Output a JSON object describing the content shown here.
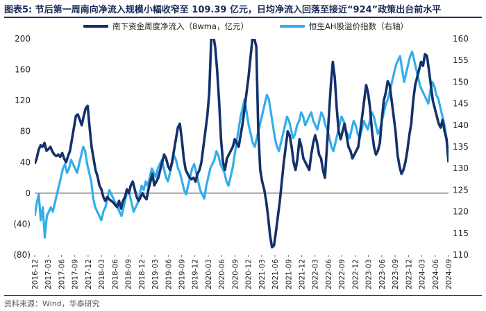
{
  "title": "图表5:  节后第一周南向净流入规模小幅收窄至 109.39 亿元，日均净流入回落至接近“924”政策出台前水平",
  "source": "资料来源：Wind，华泰研究",
  "colors": {
    "series_main": "#13316b",
    "series_right": "#33adeb",
    "axis": "#555555",
    "rule": "#17375e"
  },
  "chart_data": {
    "type": "line",
    "title": "节后第一周南向净流入规模小幅收窄至 109.39 亿元，日均净流入回落至接近“924”政策出台前水平",
    "ylim_left": [
      -80,
      200
    ],
    "yticks_left": [
      -80,
      -40,
      0,
      40,
      80,
      120,
      160,
      200
    ],
    "ytick_labels_left": [
      "(80)",
      "(40)",
      "0",
      "40",
      "80",
      "120",
      "160",
      "200"
    ],
    "ylim_right": [
      110,
      160
    ],
    "yticks_right": [
      110,
      115,
      120,
      125,
      130,
      135,
      140,
      145,
      150,
      155,
      160
    ],
    "x_labels": [
      "2016-12",
      "2017-03",
      "2017-06",
      "2017-09",
      "2017-12",
      "2018-03",
      "2018-06",
      "2018-09",
      "2018-12",
      "2019-03",
      "2019-06",
      "2019-09",
      "2019-12",
      "2020-03",
      "2020-06",
      "2020-09",
      "2020-12",
      "2021-03",
      "2021-06",
      "2021-09",
      "2021-12",
      "2022-03",
      "2022-06",
      "2022-09",
      "2022-12",
      "2023-03",
      "2023-06",
      "2023-09",
      "2023-12",
      "2024-03",
      "2024-06",
      "2024-09"
    ],
    "series": [
      {
        "name": "南下资金周度净流入（8wma，亿元）",
        "axis": "left",
        "values": [
          38,
          45,
          56,
          62,
          60,
          65,
          55,
          57,
          60,
          54,
          50,
          48,
          50,
          47,
          52,
          45,
          40,
          48,
          55,
          70,
          85,
          100,
          102,
          95,
          88,
          100,
          110,
          113,
          85,
          60,
          45,
          30,
          22,
          10,
          5,
          -5,
          -10,
          -5,
          -8,
          -10,
          -12,
          -15,
          -18,
          -10,
          -20,
          -10,
          -5,
          5,
          0,
          10,
          15,
          5,
          -5,
          -10,
          -5,
          0,
          -5,
          -8,
          5,
          15,
          25,
          10,
          15,
          20,
          30,
          40,
          50,
          45,
          35,
          30,
          40,
          55,
          70,
          85,
          90,
          70,
          45,
          30,
          25,
          20,
          18,
          20,
          15,
          25,
          30,
          40,
          60,
          80,
          100,
          130,
          200,
          205,
          190,
          160,
          120,
          70,
          40,
          30,
          45,
          50,
          55,
          60,
          70,
          65,
          60,
          75,
          90,
          110,
          130,
          150,
          175,
          200,
          200,
          190,
          80,
          30,
          15,
          5,
          -10,
          -30,
          -55,
          -70,
          -68,
          -50,
          -30,
          -10,
          15,
          40,
          60,
          80,
          75,
          60,
          40,
          30,
          45,
          70,
          60,
          45,
          40,
          35,
          30,
          50,
          65,
          75,
          65,
          50,
          45,
          30,
          20,
          60,
          100,
          140,
          170,
          150,
          110,
          80,
          70,
          80,
          90,
          75,
          60,
          55,
          45,
          50,
          55,
          60,
          80,
          100,
          120,
          140,
          130,
          110,
          80,
          60,
          50,
          55,
          65,
          95,
          120,
          130,
          145,
          140,
          120,
          100,
          80,
          50,
          35,
          25,
          30,
          40,
          55,
          75,
          90,
          120,
          140,
          150,
          160,
          170,
          165,
          180,
          178,
          160,
          140,
          120,
          110,
          100,
          90,
          85,
          95,
          80,
          70,
          40
        ],
        "x_range": [
          "2016-12",
          "2024-09"
        ]
      },
      {
        "name": "恒生AH股溢价指数（右轴）",
        "axis": "right",
        "values": [
          119,
          122,
          124,
          118,
          121,
          114,
          119,
          120,
          121,
          120,
          122,
          124,
          126,
          128,
          130,
          131,
          129,
          130,
          132,
          131,
          130,
          129,
          131,
          133,
          135,
          134,
          131,
          129,
          127,
          123,
          121,
          120,
          119,
          118,
          120,
          121,
          123,
          125,
          124,
          123,
          122,
          121,
          120,
          119,
          121,
          123,
          125,
          124,
          122,
          120,
          121,
          122,
          124,
          126,
          125,
          127,
          126,
          128,
          130,
          129,
          128,
          130,
          131,
          132,
          130,
          128,
          127,
          129,
          131,
          133,
          132,
          130,
          129,
          127,
          125,
          124,
          126,
          128,
          130,
          131,
          129,
          127,
          125,
          124,
          123,
          126,
          128,
          130,
          131,
          132,
          134,
          133,
          131,
          130,
          129,
          127,
          126,
          128,
          130,
          133,
          136,
          139,
          142,
          144,
          146,
          143,
          140,
          138,
          136,
          135,
          137,
          139,
          141,
          143,
          145,
          147,
          146,
          143,
          140,
          137,
          135,
          134,
          136,
          138,
          140,
          142,
          141,
          139,
          137,
          138,
          140,
          141,
          143,
          142,
          140,
          141,
          142,
          143,
          141,
          140,
          139,
          141,
          143,
          142,
          140,
          139,
          137,
          135,
          134,
          136,
          138,
          140,
          142,
          141,
          139,
          138,
          137,
          139,
          141,
          140,
          138,
          137,
          139,
          141,
          140,
          139,
          141,
          143,
          142,
          140,
          138,
          139,
          141,
          143,
          145,
          146,
          148,
          150,
          152,
          154,
          155,
          156,
          153,
          150,
          152,
          154,
          156,
          157,
          155,
          153,
          151,
          149,
          148,
          147,
          146,
          145,
          148,
          150,
          149,
          147,
          146,
          144,
          142,
          140,
          137,
          133
        ],
        "x_range": [
          "2016-12",
          "2024-09"
        ]
      }
    ],
    "legend": [
      {
        "label": "南下资金周度净流入（8wma，亿元）",
        "color": "#13316b"
      },
      {
        "label": "恒生AH股溢价指数（右轴）",
        "color": "#33adeb"
      }
    ]
  }
}
